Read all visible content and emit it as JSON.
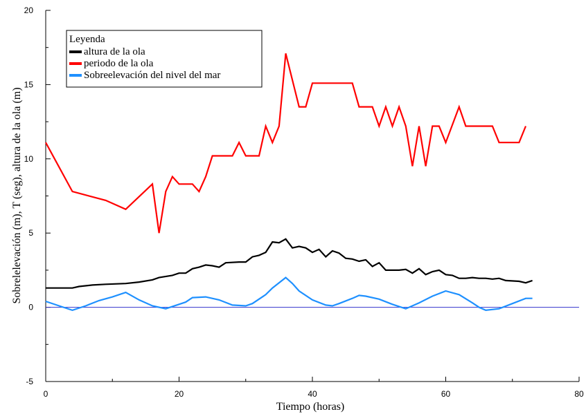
{
  "chart_data": {
    "type": "line",
    "title": "",
    "xlabel": "Tiempo (horas)",
    "ylabel": "Sobrelelevación (m), T (seg), altura de la ola (m)",
    "xlim": [
      0,
      80
    ],
    "ylim": [
      -5,
      20
    ],
    "x_ticks": [
      0,
      20,
      40,
      60,
      80
    ],
    "y_ticks": [
      -5,
      0,
      5,
      10,
      15,
      20
    ],
    "grid": false,
    "legend_title": "Leyenda",
    "legend_position": "top-left",
    "reference_line": {
      "y": 0,
      "color": "#3333cc"
    },
    "series": [
      {
        "name": "altura de la ola",
        "color": "#000000",
        "points": [
          [
            0,
            1.3
          ],
          [
            4,
            1.3
          ],
          [
            5,
            1.4
          ],
          [
            7,
            1.5
          ],
          [
            9,
            1.55
          ],
          [
            12,
            1.6
          ],
          [
            14,
            1.7
          ],
          [
            16,
            1.85
          ],
          [
            17,
            2.0
          ],
          [
            19,
            2.15
          ],
          [
            20,
            2.3
          ],
          [
            21,
            2.3
          ],
          [
            22,
            2.6
          ],
          [
            23,
            2.7
          ],
          [
            24,
            2.85
          ],
          [
            25,
            2.8
          ],
          [
            26,
            2.7
          ],
          [
            27,
            3.0
          ],
          [
            29,
            3.05
          ],
          [
            30,
            3.05
          ],
          [
            31,
            3.4
          ],
          [
            32,
            3.5
          ],
          [
            33,
            3.7
          ],
          [
            34,
            4.4
          ],
          [
            35,
            4.35
          ],
          [
            36,
            4.6
          ],
          [
            37,
            4.0
          ],
          [
            38,
            4.1
          ],
          [
            39,
            4.0
          ],
          [
            40,
            3.7
          ],
          [
            41,
            3.9
          ],
          [
            42,
            3.4
          ],
          [
            43,
            3.8
          ],
          [
            44,
            3.65
          ],
          [
            45,
            3.3
          ],
          [
            46,
            3.25
          ],
          [
            47,
            3.1
          ],
          [
            48,
            3.2
          ],
          [
            49,
            2.75
          ],
          [
            50,
            3.0
          ],
          [
            51,
            2.5
          ],
          [
            53,
            2.5
          ],
          [
            54,
            2.55
          ],
          [
            55,
            2.3
          ],
          [
            56,
            2.6
          ],
          [
            57,
            2.2
          ],
          [
            58,
            2.4
          ],
          [
            59,
            2.5
          ],
          [
            60,
            2.2
          ],
          [
            61,
            2.15
          ],
          [
            62,
            1.95
          ],
          [
            63,
            1.95
          ],
          [
            64,
            2.0
          ],
          [
            65,
            1.95
          ],
          [
            66,
            1.95
          ],
          [
            67,
            1.9
          ],
          [
            68,
            1.95
          ],
          [
            69,
            1.8
          ],
          [
            71,
            1.75
          ],
          [
            72,
            1.65
          ],
          [
            73,
            1.8
          ]
        ]
      },
      {
        "name": "periodo de la ola",
        "color": "#ff0000",
        "points": [
          [
            0,
            11.1
          ],
          [
            4,
            7.8
          ],
          [
            9,
            7.2
          ],
          [
            12,
            6.6
          ],
          [
            16,
            8.3
          ],
          [
            17,
            5.0
          ],
          [
            18,
            7.8
          ],
          [
            19,
            8.8
          ],
          [
            20,
            8.3
          ],
          [
            22,
            8.3
          ],
          [
            23,
            7.8
          ],
          [
            24,
            8.8
          ],
          [
            25,
            10.2
          ],
          [
            28,
            10.2
          ],
          [
            29,
            11.1
          ],
          [
            30,
            10.2
          ],
          [
            32,
            10.2
          ],
          [
            33,
            12.2
          ],
          [
            34,
            11.1
          ],
          [
            35,
            12.2
          ],
          [
            36,
            17.1
          ],
          [
            38,
            13.5
          ],
          [
            39,
            13.5
          ],
          [
            40,
            15.1
          ],
          [
            46,
            15.1
          ],
          [
            47,
            13.5
          ],
          [
            49,
            13.5
          ],
          [
            50,
            12.2
          ],
          [
            51,
            13.5
          ],
          [
            52,
            12.2
          ],
          [
            53,
            13.5
          ],
          [
            54,
            12.2
          ],
          [
            55,
            9.5
          ],
          [
            56,
            12.2
          ],
          [
            57,
            9.5
          ],
          [
            58,
            12.2
          ],
          [
            59,
            12.2
          ],
          [
            60,
            11.1
          ],
          [
            62,
            13.5
          ],
          [
            63,
            12.2
          ],
          [
            67,
            12.2
          ],
          [
            68,
            11.1
          ],
          [
            71,
            11.1
          ],
          [
            72,
            12.2
          ]
        ]
      },
      {
        "name": "Sobreelevación del nivel del mar",
        "color": "#1e90ff",
        "points": [
          [
            0,
            0.4
          ],
          [
            2,
            0.1
          ],
          [
            4,
            -0.2
          ],
          [
            6,
            0.1
          ],
          [
            8,
            0.45
          ],
          [
            10,
            0.7
          ],
          [
            12,
            1.0
          ],
          [
            14,
            0.5
          ],
          [
            16,
            0.1
          ],
          [
            18,
            -0.1
          ],
          [
            20,
            0.2
          ],
          [
            21,
            0.35
          ],
          [
            22,
            0.65
          ],
          [
            24,
            0.7
          ],
          [
            26,
            0.5
          ],
          [
            28,
            0.15
          ],
          [
            30,
            0.1
          ],
          [
            31,
            0.25
          ],
          [
            33,
            0.85
          ],
          [
            34,
            1.3
          ],
          [
            36,
            2.0
          ],
          [
            37,
            1.6
          ],
          [
            38,
            1.1
          ],
          [
            40,
            0.5
          ],
          [
            42,
            0.15
          ],
          [
            43,
            0.1
          ],
          [
            44,
            0.25
          ],
          [
            46,
            0.6
          ],
          [
            47,
            0.8
          ],
          [
            48,
            0.75
          ],
          [
            50,
            0.55
          ],
          [
            52,
            0.2
          ],
          [
            54,
            -0.1
          ],
          [
            56,
            0.3
          ],
          [
            58,
            0.75
          ],
          [
            60,
            1.1
          ],
          [
            62,
            0.85
          ],
          [
            64,
            0.3
          ],
          [
            65,
            0.0
          ],
          [
            66,
            -0.2
          ],
          [
            68,
            -0.1
          ],
          [
            70,
            0.25
          ],
          [
            72,
            0.6
          ],
          [
            73,
            0.6
          ]
        ]
      }
    ]
  }
}
